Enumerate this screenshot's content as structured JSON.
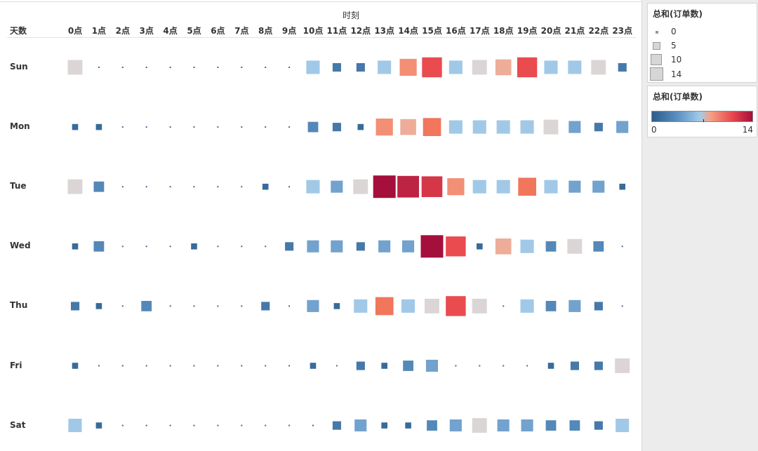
{
  "chart_data": {
    "type": "heatmap",
    "mark": "square",
    "column_header_title": "时刻",
    "row_header_title": "天数",
    "columns": [
      "0点",
      "1点",
      "2点",
      "3点",
      "4点",
      "5点",
      "6点",
      "7点",
      "8点",
      "9点",
      "10点",
      "11点",
      "12点",
      "13点",
      "14点",
      "15点",
      "16点",
      "17点",
      "18点",
      "19点",
      "20点",
      "21点",
      "22点",
      "23点"
    ],
    "rows": [
      "Sun",
      "Mon",
      "Tue",
      "Wed",
      "Thu",
      "Fri",
      "Sat"
    ],
    "measure": "总和(订单数)",
    "values": [
      [
        6,
        0,
        0,
        0,
        0,
        0,
        0,
        0,
        0,
        0,
        5,
        2,
        2,
        5,
        8,
        11,
        5,
        6,
        7,
        11,
        5,
        5,
        6,
        2
      ],
      [
        1,
        1,
        0,
        0,
        0,
        0,
        0,
        0,
        0,
        0,
        3,
        2,
        1,
        8,
        7,
        9,
        5,
        5,
        5,
        5,
        6,
        4,
        2,
        4
      ],
      [
        6,
        3,
        0,
        0,
        0,
        0,
        0,
        0,
        1,
        0,
        5,
        4,
        6,
        14,
        13,
        12,
        8,
        5,
        5,
        9,
        5,
        4,
        4,
        1
      ],
      [
        1,
        3,
        0,
        0,
        0,
        1,
        0,
        0,
        0,
        2,
        4,
        4,
        2,
        4,
        4,
        14,
        11,
        1,
        7,
        5,
        3,
        6,
        3,
        0
      ],
      [
        2,
        1,
        0,
        3,
        0,
        0,
        0,
        0,
        2,
        0,
        4,
        1,
        5,
        9,
        5,
        6,
        11,
        6,
        0,
        5,
        3,
        4,
        2,
        0
      ],
      [
        1,
        0,
        0,
        0,
        0,
        0,
        0,
        0,
        0,
        0,
        1,
        0,
        2,
        1,
        3,
        4,
        0,
        0,
        0,
        0,
        1,
        2,
        2,
        6
      ],
      [
        5,
        1,
        0,
        0,
        0,
        0,
        0,
        0,
        0,
        0,
        0,
        2,
        4,
        1,
        1,
        3,
        4,
        6,
        4,
        4,
        3,
        3,
        2,
        5
      ]
    ],
    "size_range": [
      0,
      14
    ],
    "color_range": [
      0,
      14
    ]
  },
  "legends": {
    "size": {
      "title": "总和(订单数)",
      "entries": [
        "0",
        "5",
        "10",
        "14"
      ]
    },
    "color": {
      "title": "总和(订单数)",
      "min_label": "0",
      "max_label": "14"
    }
  },
  "palette": {
    "low": "#2b5c8a",
    "mid_low": "#a3cbe8",
    "mid": "#ddd5d5",
    "mid_high": "#f3a286",
    "high": "#a50f3c",
    "size_legend_fill": "#d6d6d6"
  }
}
